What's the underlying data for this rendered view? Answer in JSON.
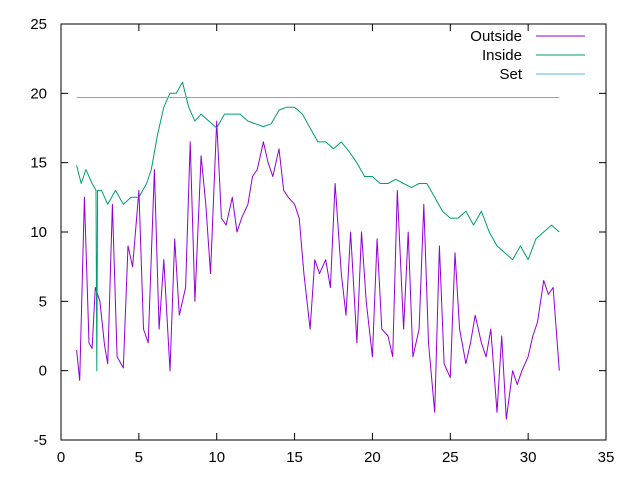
{
  "chart_data": {
    "type": "line",
    "title": "",
    "xlabel": "",
    "ylabel": "",
    "xlim": [
      0,
      35
    ],
    "ylim": [
      -5,
      25
    ],
    "xticks": [
      0,
      5,
      10,
      15,
      20,
      25,
      30,
      35
    ],
    "yticks": [
      -5,
      0,
      5,
      10,
      15,
      20,
      25
    ],
    "grid": false,
    "legend_position": "top-right",
    "series": [
      {
        "name": "Outside",
        "color": "#9400d3",
        "x": [
          1.0,
          1.2,
          1.5,
          1.8,
          2.0,
          2.2,
          2.5,
          2.8,
          3.0,
          3.3,
          3.6,
          4.0,
          4.3,
          4.6,
          5.0,
          5.3,
          5.6,
          6.0,
          6.3,
          6.6,
          7.0,
          7.3,
          7.6,
          8.0,
          8.3,
          8.6,
          9.0,
          9.3,
          9.6,
          10.0,
          10.3,
          10.6,
          11.0,
          11.3,
          11.6,
          12.0,
          12.3,
          12.6,
          13.0,
          13.3,
          13.6,
          14.0,
          14.3,
          14.6,
          15.0,
          15.3,
          15.6,
          16.0,
          16.3,
          16.6,
          17.0,
          17.3,
          17.6,
          18.0,
          18.3,
          18.6,
          19.0,
          19.3,
          19.6,
          20.0,
          20.3,
          20.6,
          21.0,
          21.3,
          21.6,
          22.0,
          22.3,
          22.6,
          23.0,
          23.3,
          23.6,
          24.0,
          24.3,
          24.6,
          25.0,
          25.3,
          25.6,
          26.0,
          26.3,
          26.6,
          27.0,
          27.3,
          27.6,
          28.0,
          28.3,
          28.6,
          29.0,
          29.3,
          29.6,
          30.0,
          30.3,
          30.6,
          31.0,
          31.3,
          31.6,
          32.0
        ],
        "values": [
          1.5,
          -0.7,
          12.5,
          2.0,
          1.6,
          6.0,
          5.0,
          1.8,
          0.5,
          12.0,
          1.0,
          0.2,
          9.0,
          7.5,
          13.0,
          3.0,
          2.0,
          14.5,
          3.0,
          8.0,
          0.0,
          9.5,
          4.0,
          6.0,
          16.5,
          5.0,
          15.5,
          12.0,
          7.0,
          18.0,
          11.0,
          10.5,
          12.5,
          10.0,
          11.0,
          12.0,
          14.0,
          14.5,
          16.5,
          15.0,
          14.0,
          16.0,
          13.0,
          12.5,
          12.0,
          11.0,
          7.0,
          3.0,
          8.0,
          7.0,
          8.0,
          6.0,
          13.5,
          7.0,
          4.0,
          10.0,
          2.0,
          10.0,
          5.0,
          1.0,
          9.5,
          3.0,
          2.5,
          1.0,
          13.0,
          3.0,
          10.0,
          1.0,
          3.0,
          12.0,
          2.0,
          -3.0,
          9.0,
          0.5,
          -0.5,
          8.5,
          3.0,
          0.5,
          2.0,
          4.0,
          2.0,
          1.0,
          3.0,
          -3.0,
          2.5,
          -3.5,
          0.0,
          -1.0,
          0.0,
          1.0,
          2.5,
          3.5,
          6.5,
          5.5,
          6.0,
          0.0
        ]
      },
      {
        "name": "Inside",
        "color": "#009e73",
        "x": [
          1.0,
          1.3,
          1.6,
          2.0,
          2.25,
          2.3,
          2.35,
          2.6,
          3.0,
          3.5,
          4.0,
          4.5,
          5.0,
          5.5,
          5.8,
          6.2,
          6.6,
          7.0,
          7.4,
          7.8,
          8.2,
          8.6,
          9.0,
          9.5,
          10.0,
          10.5,
          11.0,
          11.5,
          12.0,
          12.5,
          13.0,
          13.5,
          14.0,
          14.5,
          15.0,
          15.5,
          16.0,
          16.5,
          17.0,
          17.5,
          18.0,
          18.5,
          19.0,
          19.5,
          20.0,
          20.5,
          21.0,
          21.5,
          22.0,
          22.5,
          23.0,
          23.5,
          24.0,
          24.5,
          25.0,
          25.5,
          26.0,
          26.5,
          27.0,
          27.5,
          28.0,
          28.5,
          29.0,
          29.5,
          30.0,
          30.5,
          31.0,
          31.5,
          32.0
        ],
        "values": [
          14.8,
          13.5,
          14.5,
          13.5,
          13.0,
          0.0,
          13.0,
          13.0,
          12.0,
          13.0,
          12.0,
          12.5,
          12.5,
          13.5,
          14.5,
          17.0,
          19.0,
          20.0,
          20.0,
          20.8,
          19.0,
          18.0,
          18.5,
          18.0,
          17.5,
          18.5,
          18.5,
          18.5,
          18.0,
          17.8,
          17.6,
          17.8,
          18.8,
          19.0,
          19.0,
          18.5,
          17.5,
          16.5,
          16.5,
          16.0,
          16.5,
          15.8,
          15.0,
          14.0,
          14.0,
          13.5,
          13.5,
          13.8,
          13.5,
          13.2,
          13.5,
          13.5,
          12.5,
          11.5,
          11.0,
          11.0,
          11.5,
          10.5,
          11.5,
          10.0,
          9.0,
          8.5,
          8.0,
          9.0,
          8.0,
          9.5,
          10.0,
          10.5,
          10.0
        ]
      },
      {
        "name": "Set",
        "color": "#56b4e9",
        "x": [
          1.0,
          32.0
        ],
        "values": [
          19.7,
          19.7
        ]
      }
    ]
  }
}
